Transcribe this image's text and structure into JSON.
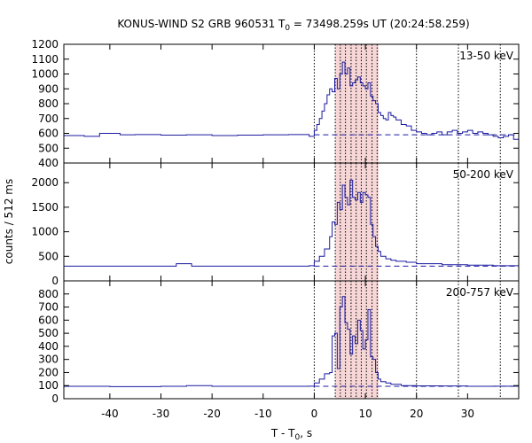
{
  "chart_data": {
    "type": "line",
    "title": "KONUS-WIND S2 GRB 960531 T",
    "title_sub": "0",
    "title_rest": " = 73498.259s UT (20:24:58.259)",
    "xlabel": "T - T",
    "xlabel_sub": "0",
    "xlabel_rest": ", s",
    "ylabel": "counts / 512 ms",
    "xlim": [
      -49,
      40
    ],
    "xticks": [
      -40,
      -30,
      -20,
      -10,
      0,
      10,
      20,
      30
    ],
    "shaded_interval": [
      4.1,
      12.6
    ],
    "vertical_markers": [
      0,
      4.1,
      5.1,
      6.1,
      7.2,
      8.2,
      9.2,
      10.2,
      11.3,
      12.3,
      20,
      28.2,
      36.4
    ],
    "colors": {
      "series": "#1a1aa0",
      "shade": "#f6d6d6",
      "marker": "#000000"
    },
    "panels": [
      {
        "band": "13-50 keV",
        "ylim": [
          400,
          1200
        ],
        "yticks": [
          400,
          500,
          600,
          700,
          800,
          900,
          1000,
          1100,
          1200
        ],
        "background": 590,
        "x": [
          -49,
          -45,
          -42,
          -38,
          -35,
          -30,
          -25,
          -20,
          -15,
          -10,
          -5,
          -1,
          0,
          0.5,
          1,
          1.5,
          2,
          2.5,
          3,
          3.5,
          4,
          4.5,
          5,
          5.5,
          6,
          6.5,
          7,
          7.5,
          8,
          8.5,
          9,
          9.5,
          10,
          10.5,
          11,
          11.5,
          12,
          12.5,
          13,
          13.5,
          14,
          14.5,
          15,
          15.5,
          16,
          17,
          18,
          19,
          20,
          21,
          22,
          23,
          24,
          25,
          26,
          27,
          28,
          29,
          30,
          31,
          32,
          33,
          34,
          35,
          36,
          37,
          38,
          39,
          40
        ],
        "y": [
          585,
          580,
          600,
          590,
          592,
          588,
          590,
          585,
          588,
          590,
          592,
          580,
          620,
          660,
          700,
          750,
          800,
          860,
          900,
          880,
          970,
          900,
          1000,
          1080,
          1000,
          1040,
          920,
          940,
          960,
          980,
          940,
          920,
          900,
          940,
          850,
          820,
          800,
          740,
          720,
          700,
          690,
          740,
          720,
          710,
          690,
          660,
          650,
          620,
          610,
          600,
          590,
          600,
          610,
          590,
          610,
          620,
          600,
          610,
          620,
          600,
          610,
          600,
          590,
          580,
          570,
          580,
          590,
          560,
          600
        ]
      },
      {
        "band": "50-200 keV",
        "ylim": [
          0,
          2400
        ],
        "yticks": [
          0,
          500,
          1000,
          1500,
          2000
        ],
        "background": 300,
        "x": [
          -49,
          -40,
          -30,
          -27,
          -24,
          -20,
          -10,
          -1,
          0,
          1,
          2,
          3,
          3.5,
          4,
          4.5,
          5,
          5.5,
          6,
          6.5,
          7,
          7.5,
          8,
          8.5,
          9,
          9.5,
          10,
          10.5,
          11,
          11.5,
          12,
          12.5,
          13,
          14,
          15,
          16,
          18,
          20,
          25,
          30,
          35,
          40
        ],
        "y": [
          300,
          300,
          300,
          350,
          300,
          300,
          300,
          310,
          400,
          500,
          650,
          900,
          1200,
          1150,
          1600,
          1450,
          1950,
          1700,
          1550,
          2050,
          1700,
          1650,
          1800,
          1600,
          1800,
          1750,
          1700,
          1150,
          900,
          700,
          600,
          500,
          450,
          420,
          400,
          380,
          350,
          330,
          320,
          310,
          300
        ]
      },
      {
        "band": "200-757 keV",
        "ylim": [
          0,
          900
        ],
        "yticks": [
          0,
          100,
          200,
          300,
          400,
          500,
          600,
          700,
          800
        ],
        "background": 95,
        "x": [
          -49,
          -40,
          -30,
          -25,
          -20,
          -10,
          -1,
          0,
          1,
          2,
          3,
          3.5,
          4,
          4.5,
          5,
          5.5,
          6,
          6.5,
          7,
          7.5,
          8,
          8.5,
          9,
          9.5,
          10,
          10.5,
          11,
          11.5,
          12,
          12.5,
          13,
          14,
          15,
          17,
          20,
          25,
          30,
          35,
          40
        ],
        "y": [
          95,
          92,
          95,
          100,
          95,
          95,
          96,
          120,
          150,
          190,
          200,
          480,
          500,
          230,
          700,
          780,
          580,
          530,
          340,
          480,
          420,
          600,
          520,
          380,
          450,
          680,
          320,
          300,
          200,
          150,
          130,
          120,
          110,
          100,
          98,
          97,
          95,
          96,
          93
        ]
      }
    ]
  }
}
